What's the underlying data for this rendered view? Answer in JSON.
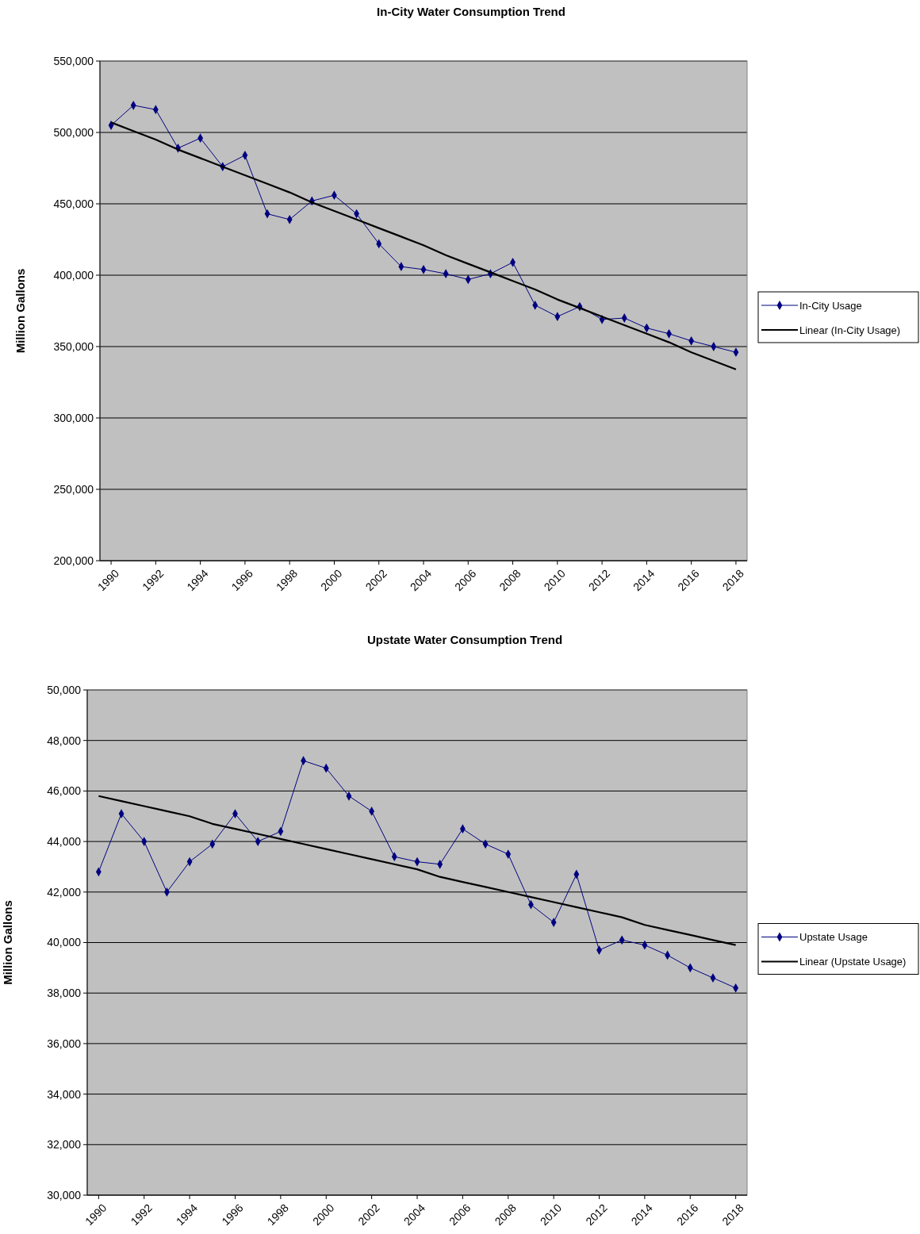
{
  "chart_data": [
    {
      "type": "line",
      "title": "In-City Water Consumption Trend",
      "ylabel": "Million Gallons",
      "x": [
        1990,
        1991,
        1992,
        1993,
        1994,
        1995,
        1996,
        1997,
        1998,
        1999,
        2000,
        2001,
        2002,
        2003,
        2004,
        2005,
        2006,
        2007,
        2008,
        2009,
        2010,
        2011,
        2012,
        2013,
        2014,
        2015,
        2016,
        2017,
        2018
      ],
      "xlim": [
        1989.5,
        2018.5
      ],
      "xticks": [
        1990,
        1992,
        1994,
        1996,
        1998,
        2000,
        2002,
        2004,
        2006,
        2008,
        2010,
        2012,
        2014,
        2016,
        2018
      ],
      "ylim": [
        200000,
        550000
      ],
      "yticks": [
        {
          "value": 200000,
          "label": "200,000"
        },
        {
          "value": 250000,
          "label": "250,000"
        },
        {
          "value": 300000,
          "label": "300,000"
        },
        {
          "value": 350000,
          "label": "350,000"
        },
        {
          "value": 400000,
          "label": "400,000"
        },
        {
          "value": 450000,
          "label": "450,000"
        },
        {
          "value": 500000,
          "label": "500,000"
        },
        {
          "value": 550000,
          "label": "550,000"
        }
      ],
      "grid": "y",
      "legend": "right",
      "marker": "diamond",
      "series": [
        {
          "name": "In-City Usage",
          "color": "#000080",
          "values": [
            505000,
            519000,
            516000,
            489000,
            496000,
            476000,
            484000,
            443000,
            439000,
            452000,
            456000,
            443000,
            422000,
            406000,
            404000,
            401000,
            397000,
            401000,
            409000,
            379000,
            371000,
            378000,
            369000,
            370000,
            363000,
            359000,
            354000,
            350000,
            346000
          ]
        },
        {
          "name": "Linear (In-City Usage)",
          "type": "line",
          "marker": "none",
          "color": "#000000",
          "values": [
            507000,
            501000,
            495000,
            488000,
            482000,
            476000,
            470000,
            464000,
            458000,
            451000,
            445000,
            439000,
            433000,
            427000,
            421000,
            414000,
            408000,
            402000,
            396000,
            390000,
            383000,
            377000,
            371000,
            365000,
            359000,
            353000,
            346000,
            340000,
            334000
          ]
        }
      ]
    },
    {
      "type": "line",
      "title": "Upstate Water Consumption Trend",
      "ylabel": "Million Gallons",
      "x": [
        1990,
        1991,
        1992,
        1993,
        1994,
        1995,
        1996,
        1997,
        1998,
        1999,
        2000,
        2001,
        2002,
        2003,
        2004,
        2005,
        2006,
        2007,
        2008,
        2009,
        2010,
        2011,
        2012,
        2013,
        2014,
        2015,
        2016,
        2017,
        2018
      ],
      "xlim": [
        1989.5,
        2018.5
      ],
      "xticks": [
        1990,
        1992,
        1994,
        1996,
        1998,
        2000,
        2002,
        2004,
        2006,
        2008,
        2010,
        2012,
        2014,
        2016,
        2018
      ],
      "ylim": [
        30000,
        50000
      ],
      "yticks": [
        {
          "value": 30000,
          "label": "30,000"
        },
        {
          "value": 32000,
          "label": "32,000"
        },
        {
          "value": 34000,
          "label": "34,000"
        },
        {
          "value": 36000,
          "label": "36,000"
        },
        {
          "value": 38000,
          "label": "38,000"
        },
        {
          "value": 40000,
          "label": "40,000"
        },
        {
          "value": 42000,
          "label": "42,000"
        },
        {
          "value": 44000,
          "label": "44,000"
        },
        {
          "value": 46000,
          "label": "46,000"
        },
        {
          "value": 48000,
          "label": "48,000"
        },
        {
          "value": 50000,
          "label": "50,000"
        }
      ],
      "grid": "y",
      "legend": "right",
      "marker": "diamond",
      "series": [
        {
          "name": "Upstate Usage",
          "color": "#000080",
          "values": [
            42800,
            45100,
            44000,
            42000,
            43200,
            43900,
            45100,
            44000,
            44400,
            47200,
            46900,
            45800,
            45200,
            43400,
            43200,
            43100,
            44500,
            43900,
            43500,
            41500,
            40800,
            42700,
            39700,
            40100,
            39900,
            39500,
            39000,
            38600,
            38200
          ]
        },
        {
          "name": "Linear (Upstate Usage)",
          "type": "line",
          "marker": "none",
          "color": "#000000",
          "values": [
            45800,
            45600,
            45400,
            45200,
            45000,
            44700,
            44500,
            44300,
            44100,
            43900,
            43700,
            43500,
            43300,
            43100,
            42900,
            42600,
            42400,
            42200,
            42000,
            41800,
            41600,
            41400,
            41200,
            41000,
            40700,
            40500,
            40300,
            40100,
            39900
          ]
        }
      ]
    }
  ]
}
